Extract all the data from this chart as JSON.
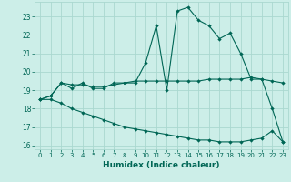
{
  "xlabel": "Humidex (Indice chaleur)",
  "bg_color": "#cceee8",
  "grid_color": "#aad8d0",
  "line_color": "#006655",
  "xlim": [
    -0.5,
    23.5
  ],
  "ylim": [
    15.8,
    23.8
  ],
  "yticks": [
    16,
    17,
    18,
    19,
    20,
    21,
    22,
    23
  ],
  "xticks": [
    0,
    1,
    2,
    3,
    4,
    5,
    6,
    7,
    8,
    9,
    10,
    11,
    12,
    13,
    14,
    15,
    16,
    17,
    18,
    19,
    20,
    21,
    22,
    23
  ],
  "line1_x": [
    0,
    1,
    2,
    3,
    4,
    5,
    6,
    7,
    8,
    9,
    10,
    11,
    12,
    13,
    14,
    15,
    16,
    17,
    18,
    19,
    20,
    21,
    22,
    23
  ],
  "line1_y": [
    18.5,
    18.7,
    19.4,
    19.1,
    19.4,
    19.1,
    19.1,
    19.4,
    19.4,
    19.4,
    20.5,
    22.5,
    19.0,
    23.3,
    23.5,
    22.8,
    22.5,
    21.8,
    22.1,
    21.0,
    19.6,
    19.6,
    18.0,
    16.2
  ],
  "line2_x": [
    0,
    1,
    2,
    3,
    4,
    5,
    6,
    7,
    8,
    9,
    10,
    11,
    12,
    13,
    14,
    15,
    16,
    17,
    18,
    19,
    20,
    21,
    22,
    23
  ],
  "line2_y": [
    18.5,
    18.7,
    19.4,
    19.3,
    19.3,
    19.2,
    19.2,
    19.3,
    19.4,
    19.5,
    19.5,
    19.5,
    19.5,
    19.5,
    19.5,
    19.5,
    19.6,
    19.6,
    19.6,
    19.6,
    19.7,
    19.6,
    19.5,
    19.4
  ],
  "line3_x": [
    0,
    1,
    2,
    3,
    4,
    5,
    6,
    7,
    8,
    9,
    10,
    11,
    12,
    13,
    14,
    15,
    16,
    17,
    18,
    19,
    20,
    21,
    22,
    23
  ],
  "line3_y": [
    18.5,
    18.5,
    18.3,
    18.0,
    17.8,
    17.6,
    17.4,
    17.2,
    17.0,
    16.9,
    16.8,
    16.7,
    16.6,
    16.5,
    16.4,
    16.3,
    16.3,
    16.2,
    16.2,
    16.2,
    16.3,
    16.4,
    16.8,
    16.2
  ],
  "marker": "D",
  "markersize": 2.2,
  "linewidth": 0.8
}
